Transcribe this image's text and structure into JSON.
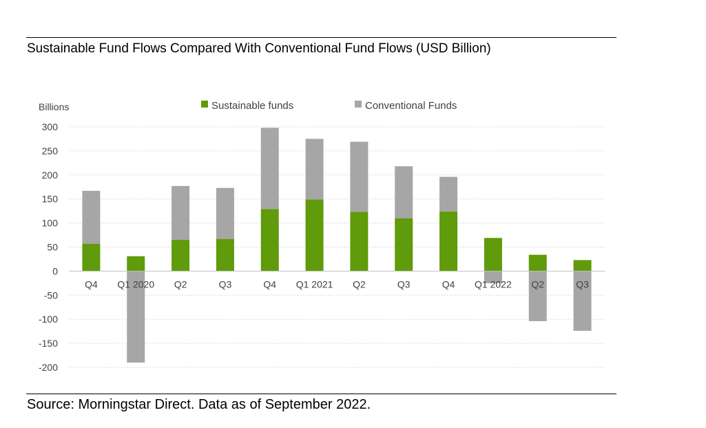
{
  "title": "Sustainable Fund Flows Compared With Conventional Fund Flows (USD Billion)",
  "source": "Source: Morningstar Direct. Data as of September 2022.",
  "colors": {
    "sustainable": "#5f9b0a",
    "conventional": "#a6a6a6",
    "grid": "#d9d9d9",
    "axis": "#bfbfbf",
    "text": "#404040"
  },
  "chart_data": {
    "type": "bar",
    "stacked": true,
    "ylabel": "Billions",
    "ylim": [
      -200,
      300
    ],
    "yticks": [
      300,
      250,
      200,
      150,
      100,
      50,
      0,
      -50,
      -100,
      -150,
      -200
    ],
    "grid": true,
    "legend_position": "top",
    "categories": [
      "Q4",
      "Q1 2020",
      "Q2",
      "Q3",
      "Q4",
      "Q1 2021",
      "Q2",
      "Q3",
      "Q4",
      "Q1 2022",
      "Q2",
      "Q3"
    ],
    "series": [
      {
        "name": "Sustainable funds",
        "color": "#5f9b0a",
        "values": [
          57,
          31,
          65,
          67,
          129,
          149,
          123,
          110,
          124,
          69,
          34,
          23
        ]
      },
      {
        "name": "Conventional Funds",
        "color": "#a6a6a6",
        "values": [
          110,
          -190,
          112,
          106,
          169,
          126,
          146,
          108,
          72,
          -25,
          -104,
          -124
        ]
      }
    ]
  }
}
